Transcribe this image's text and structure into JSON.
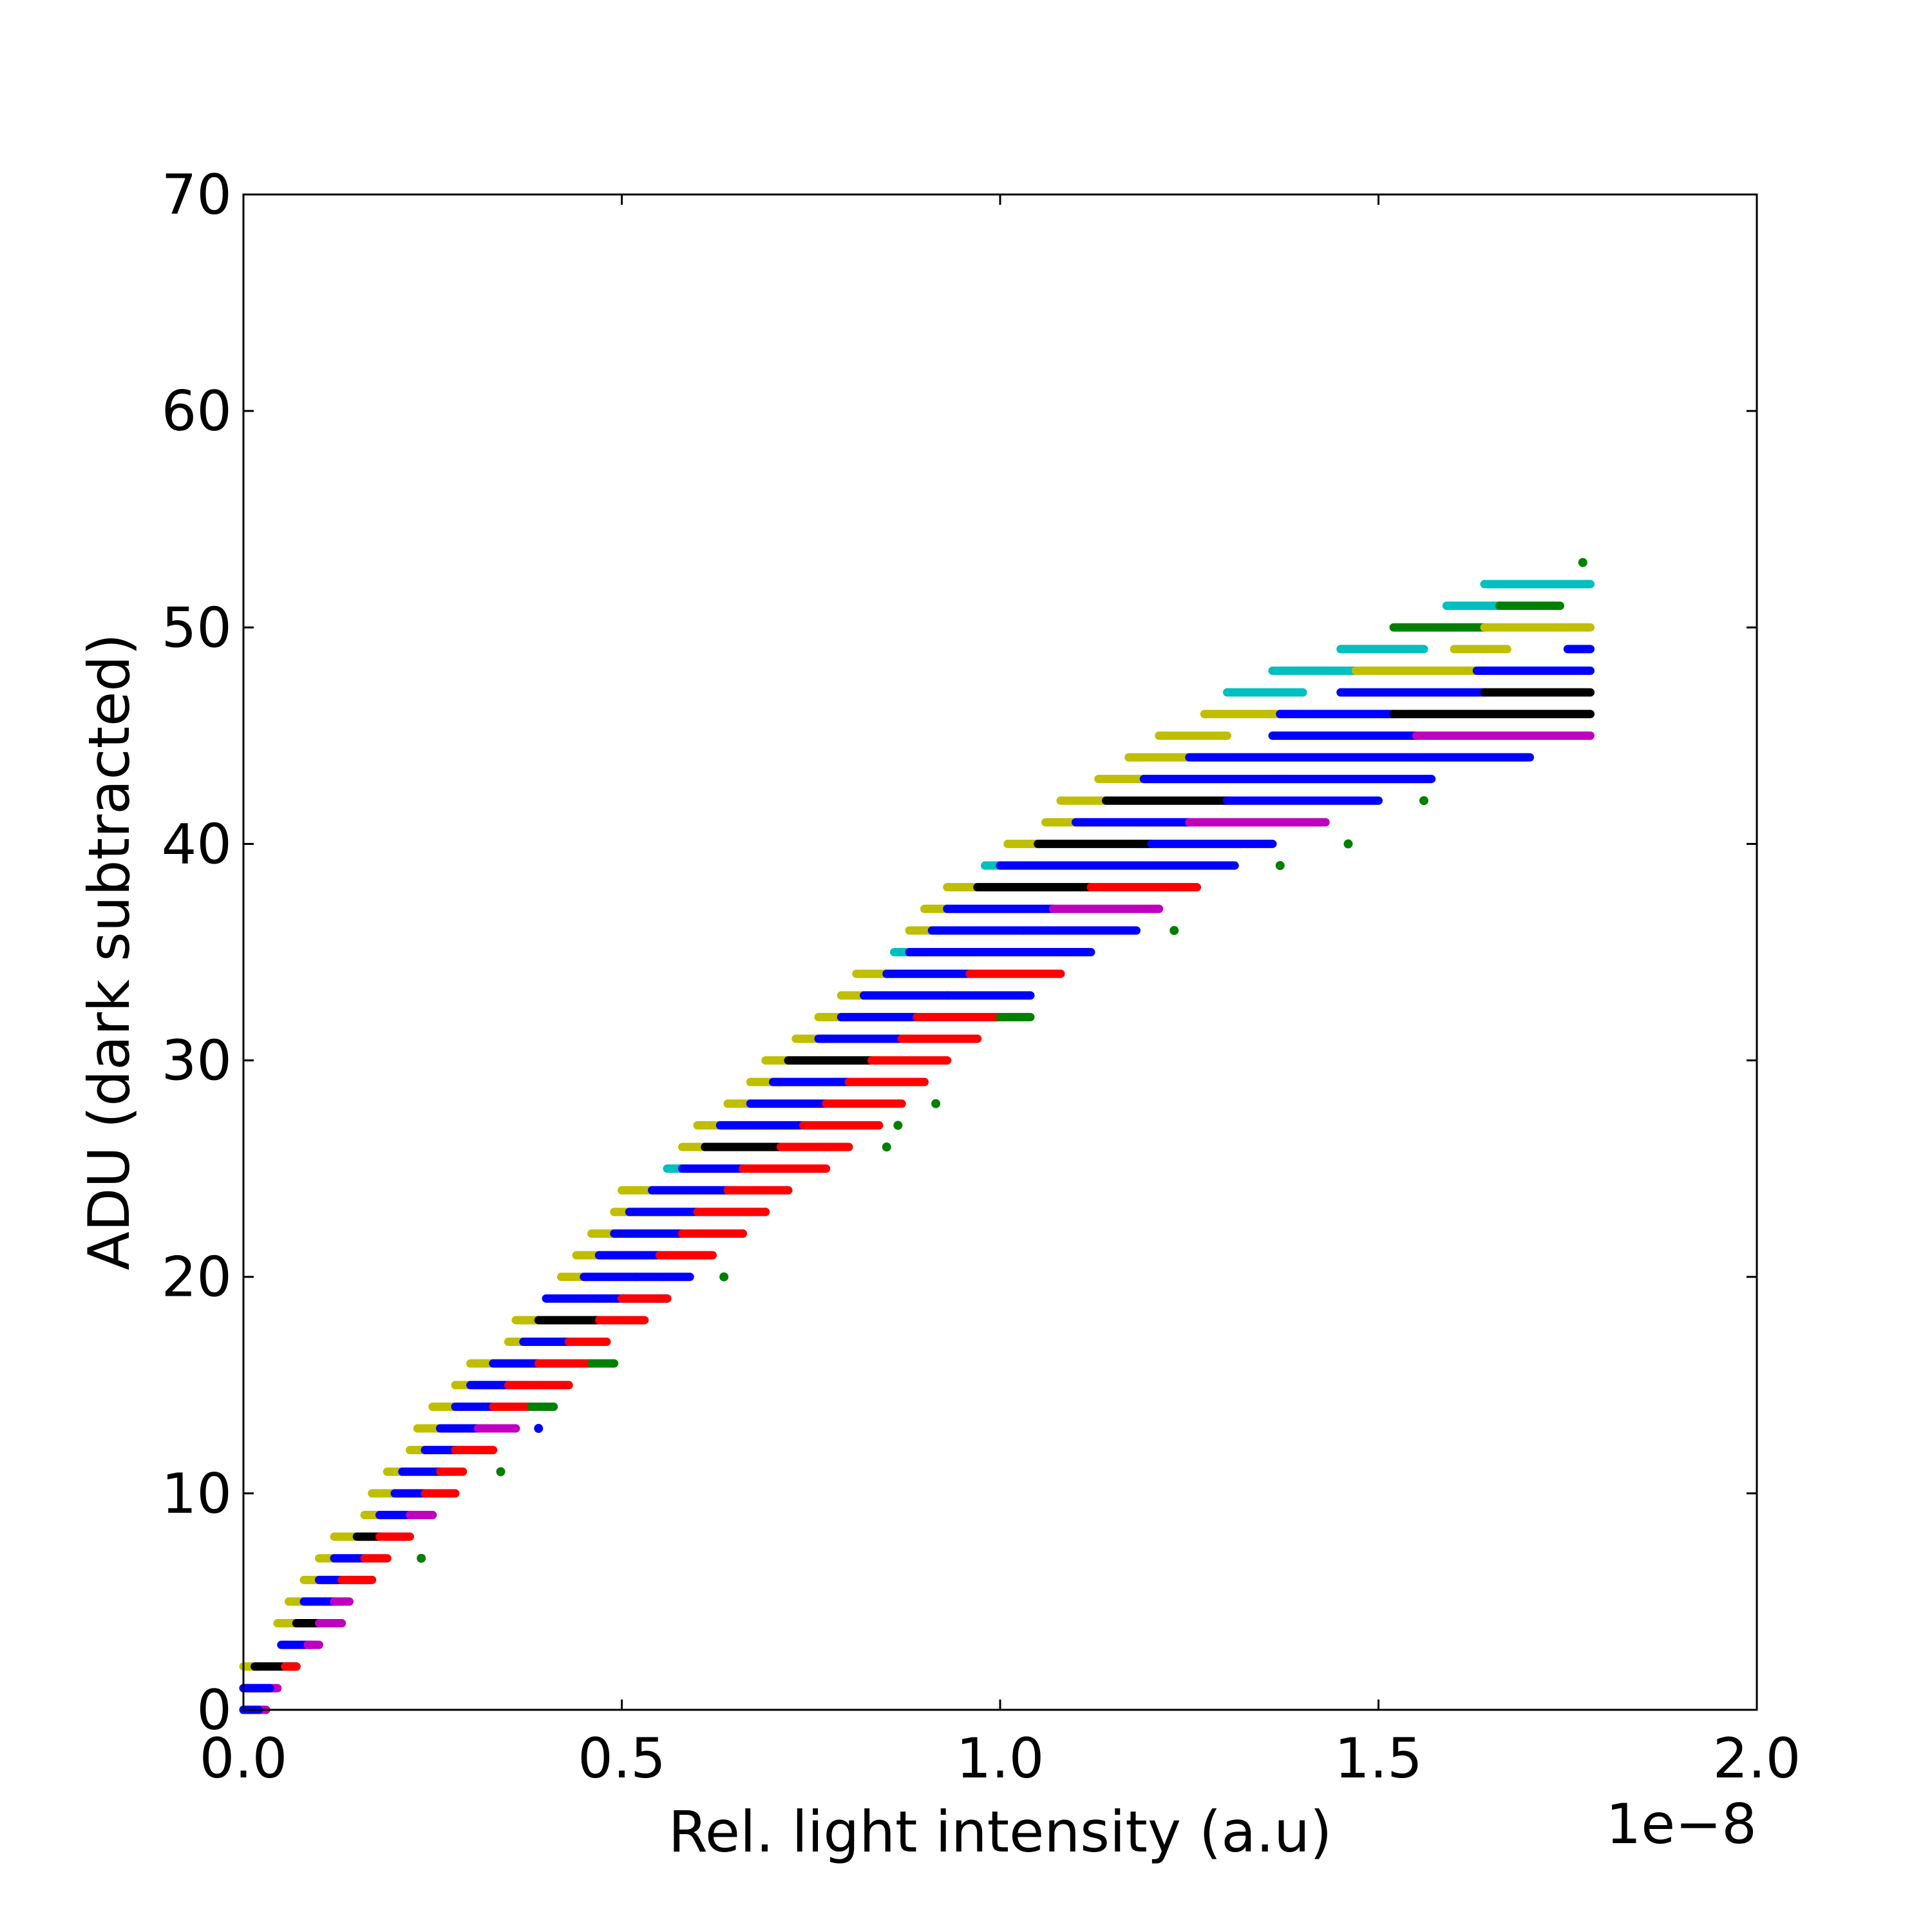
{
  "chart_data": {
    "type": "scatter",
    "title": "",
    "xlabel": "Rel. light intensity (a.u)",
    "ylabel": "ADU (dark subtracted)",
    "x_offset_label": "1e−8",
    "xlim": [
      0.0,
      2.0
    ],
    "ylim": [
      0,
      70
    ],
    "x_ticks": [
      "0.0",
      "0.5",
      "1.0",
      "1.5",
      "2.0"
    ],
    "y_ticks": [
      "0",
      "10",
      "20",
      "30",
      "40",
      "50",
      "60",
      "70"
    ],
    "grid": false,
    "legend": "none",
    "series_colors": {
      "yellow": "#bfbf00",
      "cyan": "#00bfbf",
      "blue": "#0000ff",
      "black": "#000000",
      "magenta": "#bf00bf",
      "red": "#ff0000",
      "green": "#008000"
    },
    "segments": [
      {
        "y": 0,
        "x1": 0.0,
        "x2": 0.03,
        "color": "magenta"
      },
      {
        "y": 0,
        "x1": 0.0,
        "x2": 0.02,
        "color": "blue"
      },
      {
        "y": 1,
        "x1": 0.0,
        "x2": 0.045,
        "color": "magenta"
      },
      {
        "y": 1,
        "x1": 0.0,
        "x2": 0.035,
        "color": "blue"
      },
      {
        "y": 2,
        "x1": 0.0,
        "x2": 0.02,
        "color": "yellow"
      },
      {
        "y": 2,
        "x1": 0.015,
        "x2": 0.07,
        "color": "black"
      },
      {
        "y": 2,
        "x1": 0.055,
        "x2": 0.07,
        "color": "red"
      },
      {
        "y": 3,
        "x1": 0.05,
        "x2": 0.09,
        "color": "blue"
      },
      {
        "y": 3,
        "x1": 0.085,
        "x2": 0.1,
        "color": "magenta"
      },
      {
        "y": 4,
        "x1": 0.045,
        "x2": 0.07,
        "color": "yellow"
      },
      {
        "y": 4,
        "x1": 0.07,
        "x2": 0.1,
        "color": "black"
      },
      {
        "y": 4,
        "x1": 0.1,
        "x2": 0.13,
        "color": "magenta"
      },
      {
        "y": 5,
        "x1": 0.06,
        "x2": 0.08,
        "color": "yellow"
      },
      {
        "y": 5,
        "x1": 0.08,
        "x2": 0.12,
        "color": "blue"
      },
      {
        "y": 5,
        "x1": 0.12,
        "x2": 0.14,
        "color": "magenta"
      },
      {
        "y": 6,
        "x1": 0.08,
        "x2": 0.1,
        "color": "yellow"
      },
      {
        "y": 6,
        "x1": 0.1,
        "x2": 0.13,
        "color": "blue"
      },
      {
        "y": 6,
        "x1": 0.13,
        "x2": 0.17,
        "color": "red"
      },
      {
        "y": 7,
        "x1": 0.1,
        "x2": 0.12,
        "color": "yellow"
      },
      {
        "y": 7,
        "x1": 0.12,
        "x2": 0.16,
        "color": "blue"
      },
      {
        "y": 7,
        "x1": 0.16,
        "x2": 0.19,
        "color": "red"
      },
      {
        "y": 7,
        "x1": 0.235,
        "x2": 0.235,
        "color": "green"
      },
      {
        "y": 8,
        "x1": 0.12,
        "x2": 0.15,
        "color": "yellow"
      },
      {
        "y": 8,
        "x1": 0.15,
        "x2": 0.18,
        "color": "black"
      },
      {
        "y": 8,
        "x1": 0.18,
        "x2": 0.22,
        "color": "red"
      },
      {
        "y": 9,
        "x1": 0.16,
        "x2": 0.18,
        "color": "yellow"
      },
      {
        "y": 9,
        "x1": 0.18,
        "x2": 0.22,
        "color": "blue"
      },
      {
        "y": 9,
        "x1": 0.22,
        "x2": 0.25,
        "color": "magenta"
      },
      {
        "y": 10,
        "x1": 0.17,
        "x2": 0.2,
        "color": "yellow"
      },
      {
        "y": 10,
        "x1": 0.2,
        "x2": 0.24,
        "color": "blue"
      },
      {
        "y": 10,
        "x1": 0.24,
        "x2": 0.28,
        "color": "red"
      },
      {
        "y": 11,
        "x1": 0.19,
        "x2": 0.21,
        "color": "yellow"
      },
      {
        "y": 11,
        "x1": 0.21,
        "x2": 0.26,
        "color": "blue"
      },
      {
        "y": 11,
        "x1": 0.26,
        "x2": 0.29,
        "color": "red"
      },
      {
        "y": 11,
        "x1": 0.34,
        "x2": 0.34,
        "color": "green"
      },
      {
        "y": 12,
        "x1": 0.22,
        "x2": 0.24,
        "color": "yellow"
      },
      {
        "y": 12,
        "x1": 0.24,
        "x2": 0.28,
        "color": "blue"
      },
      {
        "y": 12,
        "x1": 0.28,
        "x2": 0.33,
        "color": "red"
      },
      {
        "y": 13,
        "x1": 0.23,
        "x2": 0.26,
        "color": "yellow"
      },
      {
        "y": 13,
        "x1": 0.26,
        "x2": 0.31,
        "color": "blue"
      },
      {
        "y": 13,
        "x1": 0.31,
        "x2": 0.36,
        "color": "magenta"
      },
      {
        "y": 13,
        "x1": 0.39,
        "x2": 0.39,
        "color": "blue"
      },
      {
        "y": 14,
        "x1": 0.25,
        "x2": 0.28,
        "color": "yellow"
      },
      {
        "y": 14,
        "x1": 0.28,
        "x2": 0.33,
        "color": "blue"
      },
      {
        "y": 14,
        "x1": 0.33,
        "x2": 0.38,
        "color": "red"
      },
      {
        "y": 14,
        "x1": 0.38,
        "x2": 0.41,
        "color": "green"
      },
      {
        "y": 15,
        "x1": 0.28,
        "x2": 0.3,
        "color": "yellow"
      },
      {
        "y": 15,
        "x1": 0.3,
        "x2": 0.35,
        "color": "blue"
      },
      {
        "y": 15,
        "x1": 0.35,
        "x2": 0.43,
        "color": "red"
      },
      {
        "y": 16,
        "x1": 0.3,
        "x2": 0.33,
        "color": "yellow"
      },
      {
        "y": 16,
        "x1": 0.33,
        "x2": 0.39,
        "color": "blue"
      },
      {
        "y": 16,
        "x1": 0.39,
        "x2": 0.46,
        "color": "red"
      },
      {
        "y": 16,
        "x1": 0.46,
        "x2": 0.49,
        "color": "green"
      },
      {
        "y": 17,
        "x1": 0.35,
        "x2": 0.37,
        "color": "yellow"
      },
      {
        "y": 17,
        "x1": 0.37,
        "x2": 0.43,
        "color": "blue"
      },
      {
        "y": 17,
        "x1": 0.43,
        "x2": 0.48,
        "color": "red"
      },
      {
        "y": 18,
        "x1": 0.36,
        "x2": 0.39,
        "color": "yellow"
      },
      {
        "y": 18,
        "x1": 0.39,
        "x2": 0.47,
        "color": "black"
      },
      {
        "y": 18,
        "x1": 0.47,
        "x2": 0.53,
        "color": "red"
      },
      {
        "y": 19,
        "x1": 0.4,
        "x2": 0.47,
        "color": "blue"
      },
      {
        "y": 19,
        "x1": 0.47,
        "x2": 0.56,
        "color": "blue"
      },
      {
        "y": 19,
        "x1": 0.5,
        "x2": 0.56,
        "color": "red"
      },
      {
        "y": 20,
        "x1": 0.42,
        "x2": 0.45,
        "color": "yellow"
      },
      {
        "y": 20,
        "x1": 0.45,
        "x2": 0.52,
        "color": "blue"
      },
      {
        "y": 20,
        "x1": 0.52,
        "x2": 0.59,
        "color": "blue"
      },
      {
        "y": 20,
        "x1": 0.635,
        "x2": 0.635,
        "color": "green"
      },
      {
        "y": 21,
        "x1": 0.44,
        "x2": 0.47,
        "color": "yellow"
      },
      {
        "y": 21,
        "x1": 0.47,
        "x2": 0.55,
        "color": "blue"
      },
      {
        "y": 21,
        "x1": 0.55,
        "x2": 0.62,
        "color": "red"
      },
      {
        "y": 22,
        "x1": 0.46,
        "x2": 0.49,
        "color": "yellow"
      },
      {
        "y": 22,
        "x1": 0.49,
        "x2": 0.58,
        "color": "blue"
      },
      {
        "y": 22,
        "x1": 0.58,
        "x2": 0.66,
        "color": "red"
      },
      {
        "y": 23,
        "x1": 0.49,
        "x2": 0.51,
        "color": "yellow"
      },
      {
        "y": 23,
        "x1": 0.51,
        "x2": 0.6,
        "color": "blue"
      },
      {
        "y": 23,
        "x1": 0.6,
        "x2": 0.69,
        "color": "red"
      },
      {
        "y": 24,
        "x1": 0.5,
        "x2": 0.54,
        "color": "yellow"
      },
      {
        "y": 24,
        "x1": 0.54,
        "x2": 0.64,
        "color": "blue"
      },
      {
        "y": 24,
        "x1": 0.64,
        "x2": 0.72,
        "color": "red"
      },
      {
        "y": 25,
        "x1": 0.56,
        "x2": 0.58,
        "color": "cyan"
      },
      {
        "y": 25,
        "x1": 0.58,
        "x2": 0.66,
        "color": "blue"
      },
      {
        "y": 25,
        "x1": 0.66,
        "x2": 0.77,
        "color": "red"
      },
      {
        "y": 26,
        "x1": 0.58,
        "x2": 0.61,
        "color": "yellow"
      },
      {
        "y": 26,
        "x1": 0.61,
        "x2": 0.71,
        "color": "black"
      },
      {
        "y": 26,
        "x1": 0.71,
        "x2": 0.8,
        "color": "red"
      },
      {
        "y": 26,
        "x1": 0.85,
        "x2": 0.85,
        "color": "green"
      },
      {
        "y": 27,
        "x1": 0.6,
        "x2": 0.63,
        "color": "yellow"
      },
      {
        "y": 27,
        "x1": 0.63,
        "x2": 0.74,
        "color": "blue"
      },
      {
        "y": 27,
        "x1": 0.74,
        "x2": 0.84,
        "color": "red"
      },
      {
        "y": 27,
        "x1": 0.865,
        "x2": 0.865,
        "color": "green"
      },
      {
        "y": 28,
        "x1": 0.64,
        "x2": 0.67,
        "color": "yellow"
      },
      {
        "y": 28,
        "x1": 0.67,
        "x2": 0.77,
        "color": "blue"
      },
      {
        "y": 28,
        "x1": 0.77,
        "x2": 0.87,
        "color": "red"
      },
      {
        "y": 28,
        "x1": 0.915,
        "x2": 0.915,
        "color": "green"
      },
      {
        "y": 29,
        "x1": 0.67,
        "x2": 0.7,
        "color": "yellow"
      },
      {
        "y": 29,
        "x1": 0.7,
        "x2": 0.8,
        "color": "blue"
      },
      {
        "y": 29,
        "x1": 0.8,
        "x2": 0.9,
        "color": "red"
      },
      {
        "y": 30,
        "x1": 0.69,
        "x2": 0.72,
        "color": "yellow"
      },
      {
        "y": 30,
        "x1": 0.72,
        "x2": 0.83,
        "color": "black"
      },
      {
        "y": 30,
        "x1": 0.83,
        "x2": 0.93,
        "color": "red"
      },
      {
        "y": 31,
        "x1": 0.73,
        "x2": 0.76,
        "color": "yellow"
      },
      {
        "y": 31,
        "x1": 0.76,
        "x2": 0.87,
        "color": "blue"
      },
      {
        "y": 31,
        "x1": 0.87,
        "x2": 0.97,
        "color": "red"
      },
      {
        "y": 32,
        "x1": 0.76,
        "x2": 0.79,
        "color": "yellow"
      },
      {
        "y": 32,
        "x1": 0.79,
        "x2": 0.89,
        "color": "blue"
      },
      {
        "y": 32,
        "x1": 0.89,
        "x2": 1.0,
        "color": "red"
      },
      {
        "y": 32,
        "x1": 1.0,
        "x2": 1.04,
        "color": "green"
      },
      {
        "y": 33,
        "x1": 0.79,
        "x2": 0.82,
        "color": "yellow"
      },
      {
        "y": 33,
        "x1": 0.82,
        "x2": 0.93,
        "color": "blue"
      },
      {
        "y": 33,
        "x1": 0.93,
        "x2": 1.04,
        "color": "blue"
      },
      {
        "y": 34,
        "x1": 0.81,
        "x2": 0.85,
        "color": "yellow"
      },
      {
        "y": 34,
        "x1": 0.85,
        "x2": 0.96,
        "color": "blue"
      },
      {
        "y": 34,
        "x1": 0.96,
        "x2": 1.08,
        "color": "red"
      },
      {
        "y": 35,
        "x1": 0.86,
        "x2": 0.88,
        "color": "cyan"
      },
      {
        "y": 35,
        "x1": 0.88,
        "x2": 1.0,
        "color": "blue"
      },
      {
        "y": 35,
        "x1": 1.0,
        "x2": 1.12,
        "color": "blue"
      },
      {
        "y": 36,
        "x1": 0.88,
        "x2": 0.91,
        "color": "yellow"
      },
      {
        "y": 36,
        "x1": 0.91,
        "x2": 1.03,
        "color": "blue"
      },
      {
        "y": 36,
        "x1": 1.03,
        "x2": 1.18,
        "color": "blue"
      },
      {
        "y": 36,
        "x1": 1.23,
        "x2": 1.23,
        "color": "green"
      },
      {
        "y": 37,
        "x1": 0.9,
        "x2": 0.93,
        "color": "yellow"
      },
      {
        "y": 37,
        "x1": 0.93,
        "x2": 1.07,
        "color": "blue"
      },
      {
        "y": 37,
        "x1": 1.07,
        "x2": 1.21,
        "color": "magenta"
      },
      {
        "y": 38,
        "x1": 0.93,
        "x2": 0.97,
        "color": "yellow"
      },
      {
        "y": 38,
        "x1": 0.97,
        "x2": 1.12,
        "color": "black"
      },
      {
        "y": 38,
        "x1": 1.12,
        "x2": 1.26,
        "color": "red"
      },
      {
        "y": 39,
        "x1": 0.98,
        "x2": 1.0,
        "color": "cyan"
      },
      {
        "y": 39,
        "x1": 1.0,
        "x2": 1.15,
        "color": "blue"
      },
      {
        "y": 39,
        "x1": 1.15,
        "x2": 1.31,
        "color": "blue"
      },
      {
        "y": 39,
        "x1": 1.37,
        "x2": 1.37,
        "color": "green"
      },
      {
        "y": 40,
        "x1": 1.01,
        "x2": 1.05,
        "color": "yellow"
      },
      {
        "y": 40,
        "x1": 1.05,
        "x2": 1.2,
        "color": "black"
      },
      {
        "y": 40,
        "x1": 1.2,
        "x2": 1.36,
        "color": "blue"
      },
      {
        "y": 40,
        "x1": 1.46,
        "x2": 1.46,
        "color": "green"
      },
      {
        "y": 41,
        "x1": 1.06,
        "x2": 1.1,
        "color": "yellow"
      },
      {
        "y": 41,
        "x1": 1.1,
        "x2": 1.25,
        "color": "blue"
      },
      {
        "y": 41,
        "x1": 1.25,
        "x2": 1.43,
        "color": "magenta"
      },
      {
        "y": 42,
        "x1": 1.08,
        "x2": 1.14,
        "color": "yellow"
      },
      {
        "y": 42,
        "x1": 1.14,
        "x2": 1.3,
        "color": "black"
      },
      {
        "y": 42,
        "x1": 1.3,
        "x2": 1.5,
        "color": "blue"
      },
      {
        "y": 42,
        "x1": 1.56,
        "x2": 1.56,
        "color": "green"
      },
      {
        "y": 43,
        "x1": 1.13,
        "x2": 1.19,
        "color": "yellow"
      },
      {
        "y": 43,
        "x1": 1.19,
        "x2": 1.37,
        "color": "blue"
      },
      {
        "y": 43,
        "x1": 1.37,
        "x2": 1.57,
        "color": "blue"
      },
      {
        "y": 44,
        "x1": 1.17,
        "x2": 1.25,
        "color": "yellow"
      },
      {
        "y": 44,
        "x1": 1.25,
        "x2": 1.42,
        "color": "blue"
      },
      {
        "y": 44,
        "x1": 1.42,
        "x2": 1.7,
        "color": "blue"
      },
      {
        "y": 45,
        "x1": 1.21,
        "x2": 1.3,
        "color": "yellow"
      },
      {
        "y": 45,
        "x1": 1.36,
        "x2": 1.55,
        "color": "blue"
      },
      {
        "y": 45,
        "x1": 1.55,
        "x2": 1.78,
        "color": "magenta"
      },
      {
        "y": 46,
        "x1": 1.27,
        "x2": 1.37,
        "color": "yellow"
      },
      {
        "y": 46,
        "x1": 1.37,
        "x2": 1.52,
        "color": "blue"
      },
      {
        "y": 46,
        "x1": 1.52,
        "x2": 1.78,
        "color": "black"
      },
      {
        "y": 47,
        "x1": 1.3,
        "x2": 1.4,
        "color": "cyan"
      },
      {
        "y": 47,
        "x1": 1.45,
        "x2": 1.64,
        "color": "blue"
      },
      {
        "y": 47,
        "x1": 1.64,
        "x2": 1.78,
        "color": "black"
      },
      {
        "y": 48,
        "x1": 1.36,
        "x2": 1.47,
        "color": "cyan"
      },
      {
        "y": 48,
        "x1": 1.47,
        "x2": 1.63,
        "color": "yellow"
      },
      {
        "y": 48,
        "x1": 1.63,
        "x2": 1.78,
        "color": "blue"
      },
      {
        "y": 49,
        "x1": 1.45,
        "x2": 1.56,
        "color": "cyan"
      },
      {
        "y": 49,
        "x1": 1.6,
        "x2": 1.67,
        "color": "yellow"
      },
      {
        "y": 49,
        "x1": 1.75,
        "x2": 1.78,
        "color": "blue"
      },
      {
        "y": 50,
        "x1": 1.52,
        "x2": 1.64,
        "color": "green"
      },
      {
        "y": 50,
        "x1": 1.64,
        "x2": 1.78,
        "color": "yellow"
      },
      {
        "y": 51,
        "x1": 1.59,
        "x2": 1.66,
        "color": "cyan"
      },
      {
        "y": 51,
        "x1": 1.66,
        "x2": 1.74,
        "color": "green"
      },
      {
        "y": 52,
        "x1": 1.64,
        "x2": 1.78,
        "color": "cyan"
      },
      {
        "y": 53,
        "x1": 1.77,
        "x2": 1.77,
        "color": "green"
      }
    ]
  }
}
